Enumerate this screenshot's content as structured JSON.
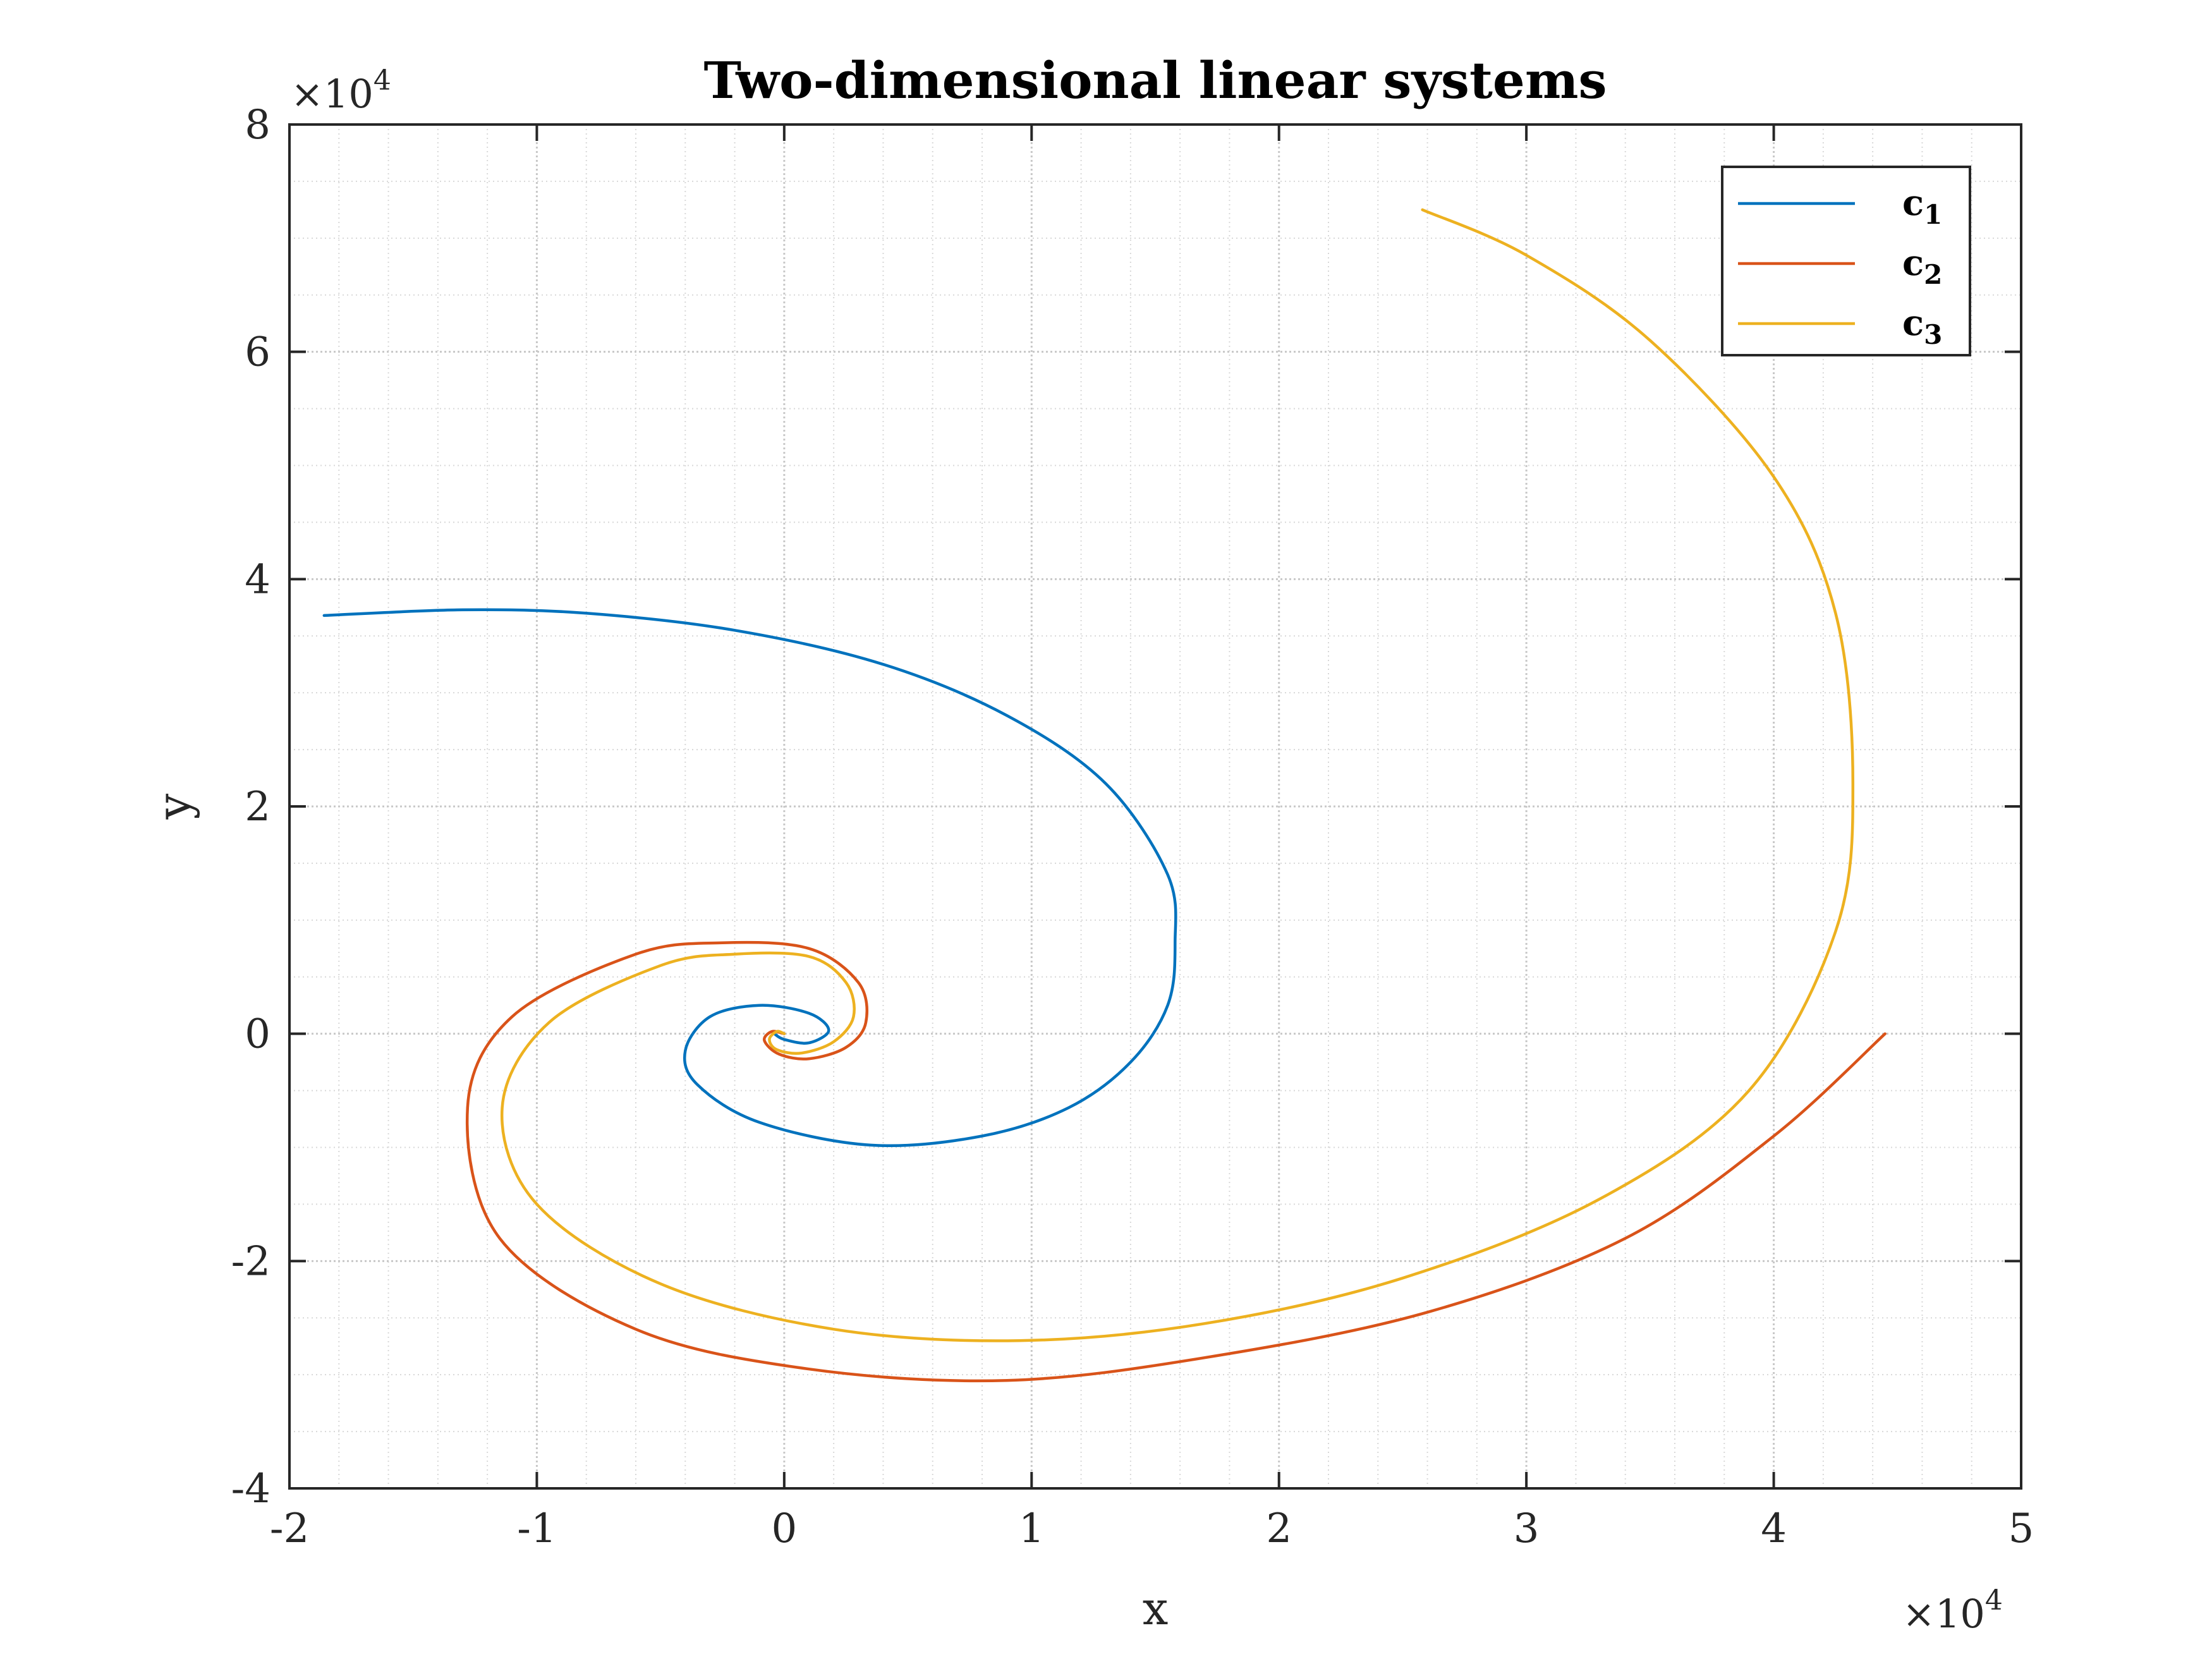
{
  "chart_data": {
    "type": "line",
    "title": "Two-dimensional linear systems",
    "xlabel": "x",
    "ylabel": "y",
    "x_multiplier": "×10",
    "x_multiplier_exponent": "4",
    "y_multiplier": "×10",
    "y_multiplier_exponent": "4",
    "xlim": [
      -20000,
      50000
    ],
    "ylim": [
      -40000,
      80000
    ],
    "xticks": [
      -20000,
      -10000,
      0,
      10000,
      20000,
      30000,
      40000,
      50000
    ],
    "xtick_labels": [
      "-2",
      "-1",
      "0",
      "1",
      "2",
      "3",
      "4",
      "5"
    ],
    "yticks": [
      -40000,
      -20000,
      0,
      20000,
      40000,
      60000,
      80000
    ],
    "ytick_labels": [
      "-4",
      "-2",
      "0",
      "2",
      "4",
      "6",
      "8"
    ],
    "grid": "on (major and minor)",
    "legend_position": "top-right",
    "series": [
      {
        "name": "c",
        "subscript": "1",
        "color": "#0072BD",
        "x": [
          -18600,
          -13000,
          -8000,
          -2000,
          4000,
          9000,
          13000,
          15500,
          15800,
          15500,
          14000,
          11500,
          8000,
          3500,
          -1000,
          -3500,
          -4000,
          -3000,
          -1000,
          1000,
          1800,
          1000,
          0,
          -400
        ],
        "y": [
          36800,
          37300,
          37000,
          35500,
          32500,
          28000,
          22000,
          14000,
          8000,
          2500,
          -2500,
          -6500,
          -9000,
          -9800,
          -7800,
          -4500,
          -1500,
          1500,
          2500,
          1800,
          300,
          -800,
          -500,
          0
        ]
      },
      {
        "name": "c",
        "subscript": "2",
        "color": "#D95319",
        "x": [
          44500,
          40000,
          34000,
          26000,
          17000,
          9000,
          1000,
          -6000,
          -11500,
          -12800,
          -11000,
          -6000,
          -2500,
          1000,
          3000,
          3300,
          2500,
          1000,
          -200,
          -800,
          -500,
          0
        ],
        "y": [
          0,
          -9000,
          -18000,
          -24500,
          -28500,
          -30500,
          -29500,
          -26000,
          -18000,
          -6500,
          1500,
          7000,
          8000,
          7500,
          4500,
          1000,
          -1200,
          -2200,
          -1800,
          -600,
          200,
          0
        ]
      },
      {
        "name": "c",
        "subscript": "3",
        "color": "#EDB120",
        "x": [
          25800,
          30000,
          35000,
          40000,
          42500,
          43200,
          42500,
          39000,
          33000,
          25000,
          17000,
          9500,
          2000,
          -5000,
          -10000,
          -11400,
          -9500,
          -5000,
          -2000,
          1000,
          2500,
          2800,
          2000,
          700,
          -300,
          -600,
          -300,
          0
        ],
        "y": [
          72500,
          68500,
          61000,
          49000,
          37000,
          22000,
          9000,
          -5000,
          -14500,
          -21500,
          -25500,
          -27000,
          -26000,
          -22000,
          -15000,
          -6500,
          1000,
          6000,
          7000,
          6800,
          4500,
          1500,
          -700,
          -1700,
          -1400,
          -500,
          200,
          0
        ]
      }
    ]
  }
}
